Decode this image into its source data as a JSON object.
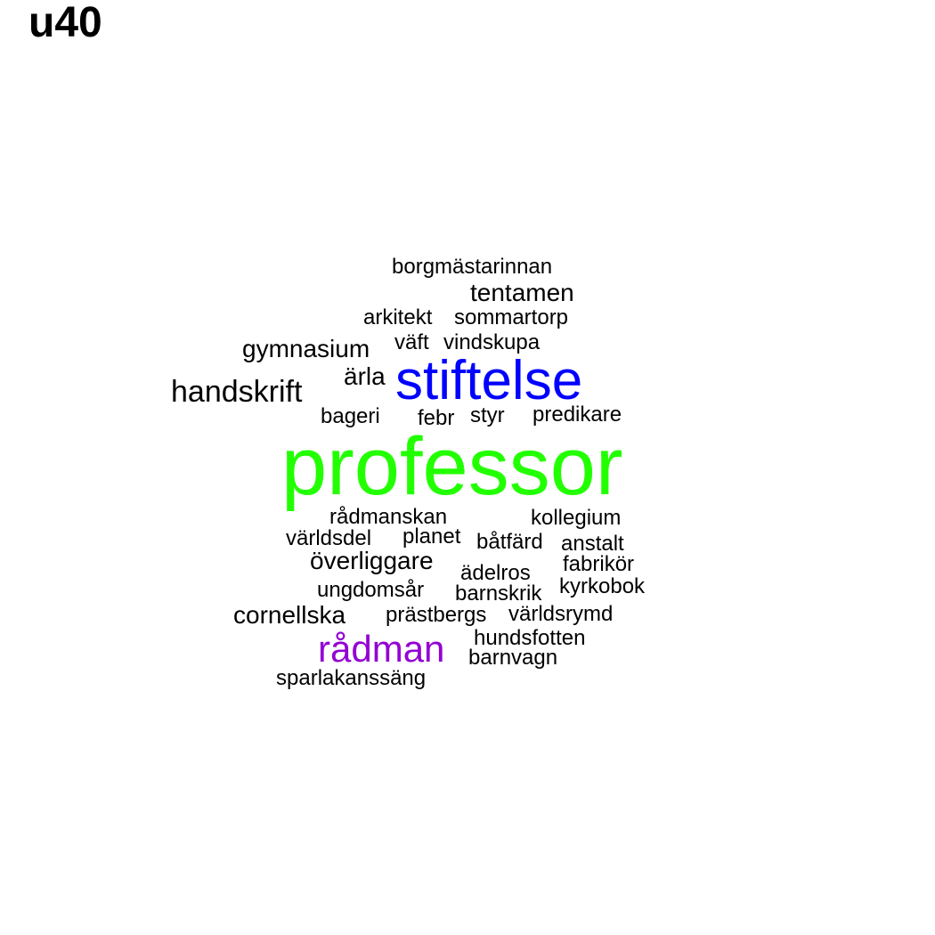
{
  "title": "u40",
  "colors": {
    "default": "#000000",
    "professor": "#22ff00",
    "stiftelse": "#0000ff",
    "radman": "#9400d3"
  },
  "words": [
    {
      "text": "borgmästarinnan"
    },
    {
      "text": "tentamen"
    },
    {
      "text": "arkitekt"
    },
    {
      "text": "sommartorp"
    },
    {
      "text": "gymnasium"
    },
    {
      "text": "väft"
    },
    {
      "text": "vindskupa"
    },
    {
      "text": "ärla"
    },
    {
      "text": "stiftelse"
    },
    {
      "text": "handskrift"
    },
    {
      "text": "bageri"
    },
    {
      "text": "febr"
    },
    {
      "text": "styr"
    },
    {
      "text": "predikare"
    },
    {
      "text": "professor"
    },
    {
      "text": "rådmanskan"
    },
    {
      "text": "kollegium"
    },
    {
      "text": "världsdel"
    },
    {
      "text": "planet"
    },
    {
      "text": "båtfärd"
    },
    {
      "text": "anstalt"
    },
    {
      "text": "överliggare"
    },
    {
      "text": "ädelros"
    },
    {
      "text": "fabrikör"
    },
    {
      "text": "ungdomsår"
    },
    {
      "text": "barnskrik"
    },
    {
      "text": "kyrkobok"
    },
    {
      "text": "cornellska"
    },
    {
      "text": "prästbergs"
    },
    {
      "text": "världsrymd"
    },
    {
      "text": "hundsfotten"
    },
    {
      "text": "rådman"
    },
    {
      "text": "barnvagn"
    },
    {
      "text": "sparlakanssäng"
    }
  ]
}
